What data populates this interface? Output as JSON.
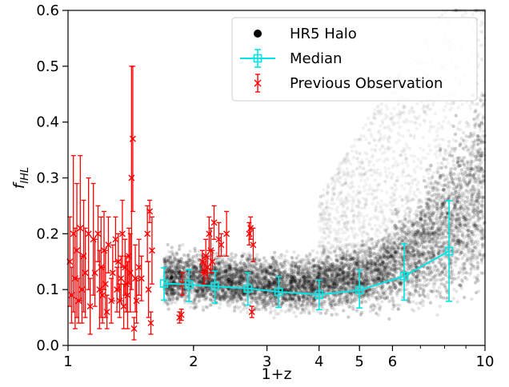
{
  "chart_data": {
    "type": "scatter",
    "xlabel": "1+z",
    "ylabel_main": "f",
    "ylabel_sub": "IHL",
    "x_scale": "log",
    "xlim": [
      1,
      10
    ],
    "ylim": [
      0,
      0.6
    ],
    "x_ticks": [
      {
        "value": 1,
        "label": "1"
      },
      {
        "value": 2,
        "label": "2"
      },
      {
        "value": 3,
        "label": "3"
      },
      {
        "value": 4,
        "label": "4"
      },
      {
        "value": 5,
        "label": "5"
      },
      {
        "value": 6,
        "label": "6"
      },
      {
        "value": 10,
        "label": "10"
      }
    ],
    "y_ticks": [
      {
        "value": 0.0,
        "label": "0.0"
      },
      {
        "value": 0.1,
        "label": "0.1"
      },
      {
        "value": 0.2,
        "label": "0.2"
      },
      {
        "value": 0.3,
        "label": "0.3"
      },
      {
        "value": 0.4,
        "label": "0.4"
      },
      {
        "value": 0.5,
        "label": "0.5"
      },
      {
        "value": 0.6,
        "label": "0.6"
      }
    ],
    "legend": {
      "position": "upper right",
      "entries": [
        {
          "label": "HR5 Halo",
          "color": "#000000",
          "marker": "circle"
        },
        {
          "label": "Median",
          "color": "#00e5e5",
          "marker": "square-errorbar-line"
        },
        {
          "label": "Previous Observation",
          "color": "#ff0000",
          "marker": "x-errorbar"
        }
      ]
    },
    "colors": {
      "halo": "#000000",
      "median": "#00e5e5",
      "observation": "#ff0000"
    },
    "halo_band": [
      {
        "x": 1.7,
        "low": 0.055,
        "high": 0.19
      },
      {
        "x": 2.0,
        "low": 0.05,
        "high": 0.185
      },
      {
        "x": 2.5,
        "low": 0.048,
        "high": 0.18
      },
      {
        "x": 3.0,
        "low": 0.045,
        "high": 0.175
      },
      {
        "x": 3.5,
        "low": 0.045,
        "high": 0.175
      },
      {
        "x": 4.0,
        "low": 0.045,
        "high": 0.18
      },
      {
        "x": 4.5,
        "low": 0.045,
        "high": 0.19
      },
      {
        "x": 5.0,
        "low": 0.045,
        "high": 0.2
      },
      {
        "x": 5.5,
        "low": 0.045,
        "high": 0.22
      },
      {
        "x": 6.0,
        "low": 0.04,
        "high": 0.25
      },
      {
        "x": 7.0,
        "low": 0.035,
        "high": 0.32
      },
      {
        "x": 8.0,
        "low": 0.03,
        "high": 0.4
      },
      {
        "x": 9.0,
        "low": 0.025,
        "high": 0.47
      },
      {
        "x": 10.0,
        "low": 0.02,
        "high": 0.55
      }
    ],
    "median": [
      {
        "x": 1.7,
        "y": 0.111,
        "yerr_low": 0.03,
        "yerr_high": 0.028
      },
      {
        "x": 1.95,
        "y": 0.109,
        "yerr_low": 0.03,
        "yerr_high": 0.027
      },
      {
        "x": 2.25,
        "y": 0.106,
        "yerr_low": 0.03,
        "yerr_high": 0.027
      },
      {
        "x": 2.7,
        "y": 0.102,
        "yerr_low": 0.03,
        "yerr_high": 0.028
      },
      {
        "x": 3.2,
        "y": 0.096,
        "yerr_low": 0.028,
        "yerr_high": 0.027
      },
      {
        "x": 4.0,
        "y": 0.091,
        "yerr_low": 0.027,
        "yerr_high": 0.026
      },
      {
        "x": 5.0,
        "y": 0.099,
        "yerr_low": 0.032,
        "yerr_high": 0.036
      },
      {
        "x": 6.4,
        "y": 0.124,
        "yerr_low": 0.043,
        "yerr_high": 0.058
      },
      {
        "x": 8.2,
        "y": 0.169,
        "yerr_low": 0.09,
        "yerr_high": 0.09
      }
    ],
    "observations": [
      {
        "x": 1.01,
        "y": 0.15,
        "yerr": 0.08
      },
      {
        "x": 1.02,
        "y": 0.09,
        "yerr": 0.05
      },
      {
        "x": 1.03,
        "y": 0.2,
        "yerr": 0.14
      },
      {
        "x": 1.04,
        "y": 0.12,
        "yerr": 0.09
      },
      {
        "x": 1.05,
        "y": 0.17,
        "yerr": 0.12
      },
      {
        "x": 1.06,
        "y": 0.08,
        "yerr": 0.04
      },
      {
        "x": 1.07,
        "y": 0.21,
        "yerr": 0.13
      },
      {
        "x": 1.08,
        "y": 0.1,
        "yerr": 0.06
      },
      {
        "x": 1.09,
        "y": 0.16,
        "yerr": 0.1
      },
      {
        "x": 1.1,
        "y": 0.13,
        "yerr": 0.08
      },
      {
        "x": 1.12,
        "y": 0.2,
        "yerr": 0.1
      },
      {
        "x": 1.13,
        "y": 0.07,
        "yerr": 0.05
      },
      {
        "x": 1.15,
        "y": 0.19,
        "yerr": 0.1
      },
      {
        "x": 1.16,
        "y": 0.13,
        "yerr": 0.06
      },
      {
        "x": 1.18,
        "y": 0.2,
        "yerr": 0.05
      },
      {
        "x": 1.19,
        "y": 0.1,
        "yerr": 0.07
      },
      {
        "x": 1.2,
        "y": 0.14,
        "yerr": 0.09
      },
      {
        "x": 1.21,
        "y": 0.09,
        "yerr": 0.05
      },
      {
        "x": 1.22,
        "y": 0.17,
        "yerr": 0.07
      },
      {
        "x": 1.23,
        "y": 0.11,
        "yerr": 0.06
      },
      {
        "x": 1.24,
        "y": 0.06,
        "yerr": 0.03
      },
      {
        "x": 1.25,
        "y": 0.18,
        "yerr": 0.05
      },
      {
        "x": 1.27,
        "y": 0.08,
        "yerr": 0.04
      },
      {
        "x": 1.28,
        "y": 0.13,
        "yerr": 0.05
      },
      {
        "x": 1.3,
        "y": 0.19,
        "yerr": 0.04
      },
      {
        "x": 1.31,
        "y": 0.1,
        "yerr": 0.04
      },
      {
        "x": 1.32,
        "y": 0.15,
        "yerr": 0.05
      },
      {
        "x": 1.33,
        "y": 0.08,
        "yerr": 0.03
      },
      {
        "x": 1.34,
        "y": 0.12,
        "yerr": 0.04
      },
      {
        "x": 1.35,
        "y": 0.2,
        "yerr": 0.06
      },
      {
        "x": 1.36,
        "y": 0.07,
        "yerr": 0.04
      },
      {
        "x": 1.37,
        "y": 0.14,
        "yerr": 0.05
      },
      {
        "x": 1.38,
        "y": 0.11,
        "yerr": 0.05
      },
      {
        "x": 1.39,
        "y": 0.09,
        "yerr": 0.06
      },
      {
        "x": 1.4,
        "y": 0.16,
        "yerr": 0.05
      },
      {
        "x": 1.41,
        "y": 0.13,
        "yerr": 0.07
      },
      {
        "x": 1.42,
        "y": 0.3,
        "yerr": 0.2
      },
      {
        "x": 1.43,
        "y": 0.37,
        "yerr": 0.13
      },
      {
        "x": 1.44,
        "y": 0.03,
        "yerr": 0.02
      },
      {
        "x": 1.45,
        "y": 0.12,
        "yerr": 0.06
      },
      {
        "x": 1.46,
        "y": 0.08,
        "yerr": 0.04
      },
      {
        "x": 1.48,
        "y": 0.14,
        "yerr": 0.05
      },
      {
        "x": 1.5,
        "y": 0.12,
        "yerr": 0.04
      },
      {
        "x": 1.55,
        "y": 0.2,
        "yerr": 0.05
      },
      {
        "x": 1.56,
        "y": 0.1,
        "yerr": 0.05
      },
      {
        "x": 1.57,
        "y": 0.24,
        "yerr": 0.02
      },
      {
        "x": 1.58,
        "y": 0.04,
        "yerr": 0.02
      },
      {
        "x": 1.59,
        "y": 0.17,
        "yerr": 0.06
      },
      {
        "x": 1.85,
        "y": 0.05,
        "yerr": 0.01
      },
      {
        "x": 1.87,
        "y": 0.055,
        "yerr": 0.01
      },
      {
        "x": 1.88,
        "y": 0.11,
        "yerr": 0.02
      },
      {
        "x": 2.1,
        "y": 0.15,
        "yerr": 0.02
      },
      {
        "x": 2.12,
        "y": 0.13,
        "yerr": 0.02
      },
      {
        "x": 2.14,
        "y": 0.16,
        "yerr": 0.03
      },
      {
        "x": 2.16,
        "y": 0.14,
        "yerr": 0.02
      },
      {
        "x": 2.18,
        "y": 0.2,
        "yerr": 0.03
      },
      {
        "x": 2.2,
        "y": 0.17,
        "yerr": 0.04
      },
      {
        "x": 2.22,
        "y": 0.15,
        "yerr": 0.02
      },
      {
        "x": 2.24,
        "y": 0.22,
        "yerr": 0.03
      },
      {
        "x": 2.3,
        "y": 0.19,
        "yerr": 0.03
      },
      {
        "x": 2.33,
        "y": 0.18,
        "yerr": 0.02
      },
      {
        "x": 2.4,
        "y": 0.2,
        "yerr": 0.04
      },
      {
        "x": 2.72,
        "y": 0.2,
        "yerr": 0.02
      },
      {
        "x": 2.74,
        "y": 0.21,
        "yerr": 0.02
      },
      {
        "x": 2.76,
        "y": 0.06,
        "yerr": 0.01
      },
      {
        "x": 2.78,
        "y": 0.18,
        "yerr": 0.03
      }
    ]
  }
}
